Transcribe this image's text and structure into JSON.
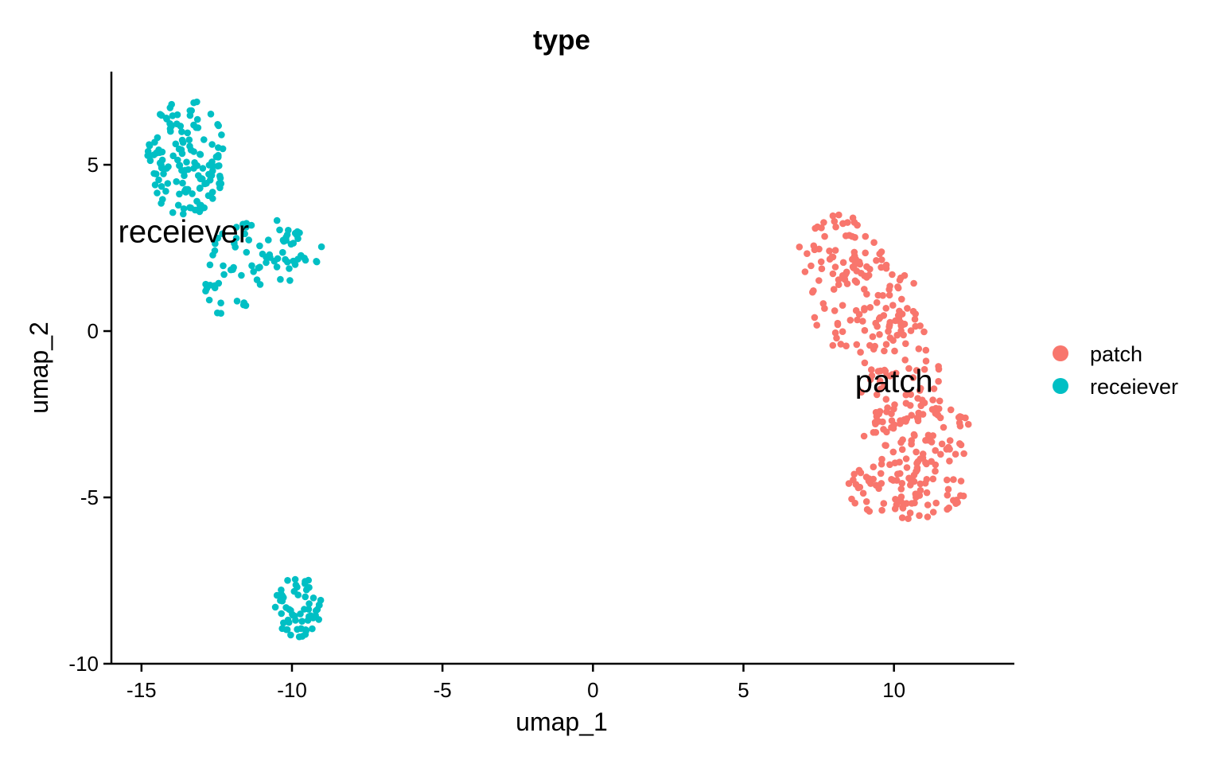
{
  "chart_data": {
    "type": "scatter",
    "title": "type",
    "xlabel": "umap_1",
    "ylabel": "umap_2",
    "xlim": [
      -16,
      14
    ],
    "ylim": [
      -10,
      7.8
    ],
    "x_ticks": [
      -15,
      -10,
      -5,
      0,
      5,
      10
    ],
    "y_ticks": [
      5,
      0,
      -5,
      -10
    ],
    "x_tick_labels": [
      "-15",
      "-10",
      "-5",
      "0",
      "5",
      "10"
    ],
    "y_tick_labels": [
      "5",
      "0",
      "-5",
      "-10"
    ],
    "grid": false,
    "legend_position": "right",
    "series": [
      {
        "name": "patch",
        "color": "#F8766D",
        "label": "patch",
        "label_position": [
          10.0,
          -1.5
        ],
        "regions": [
          {
            "x_range": [
              6.8,
              9.6
            ],
            "y_range": [
              1.2,
              3.6
            ],
            "count": 60
          },
          {
            "x_range": [
              7.2,
              11.0
            ],
            "y_range": [
              -0.8,
              2.2
            ],
            "count": 80
          },
          {
            "x_range": [
              8.6,
              11.6
            ],
            "y_range": [
              -2.8,
              0.6
            ],
            "count": 70
          },
          {
            "x_range": [
              9.0,
              12.6
            ],
            "y_range": [
              -4.2,
              -2.0
            ],
            "count": 80
          },
          {
            "x_range": [
              8.4,
              12.4
            ],
            "y_range": [
              -5.7,
              -3.8
            ],
            "count": 90
          }
        ]
      },
      {
        "name": "receiever",
        "color": "#00BFC4",
        "label": "receiever",
        "label_position": [
          -13.6,
          3.0
        ],
        "regions": [
          {
            "x_range": [
              -14.8,
              -12.2
            ],
            "y_range": [
              3.4,
              7.0
            ],
            "count": 140
          },
          {
            "x_range": [
              -13.0,
              -9.0
            ],
            "y_range": [
              1.4,
              3.4
            ],
            "count": 70
          },
          {
            "x_range": [
              -13.1,
              -11.4
            ],
            "y_range": [
              0.4,
              1.6
            ],
            "count": 15
          },
          {
            "x_range": [
              -10.6,
              -9.0
            ],
            "y_range": [
              -9.2,
              -7.4
            ],
            "count": 60
          }
        ]
      }
    ]
  },
  "legend": {
    "items": [
      {
        "label": "patch",
        "color": "#F8766D"
      },
      {
        "label": "receiever",
        "color": "#00BFC4"
      }
    ]
  }
}
